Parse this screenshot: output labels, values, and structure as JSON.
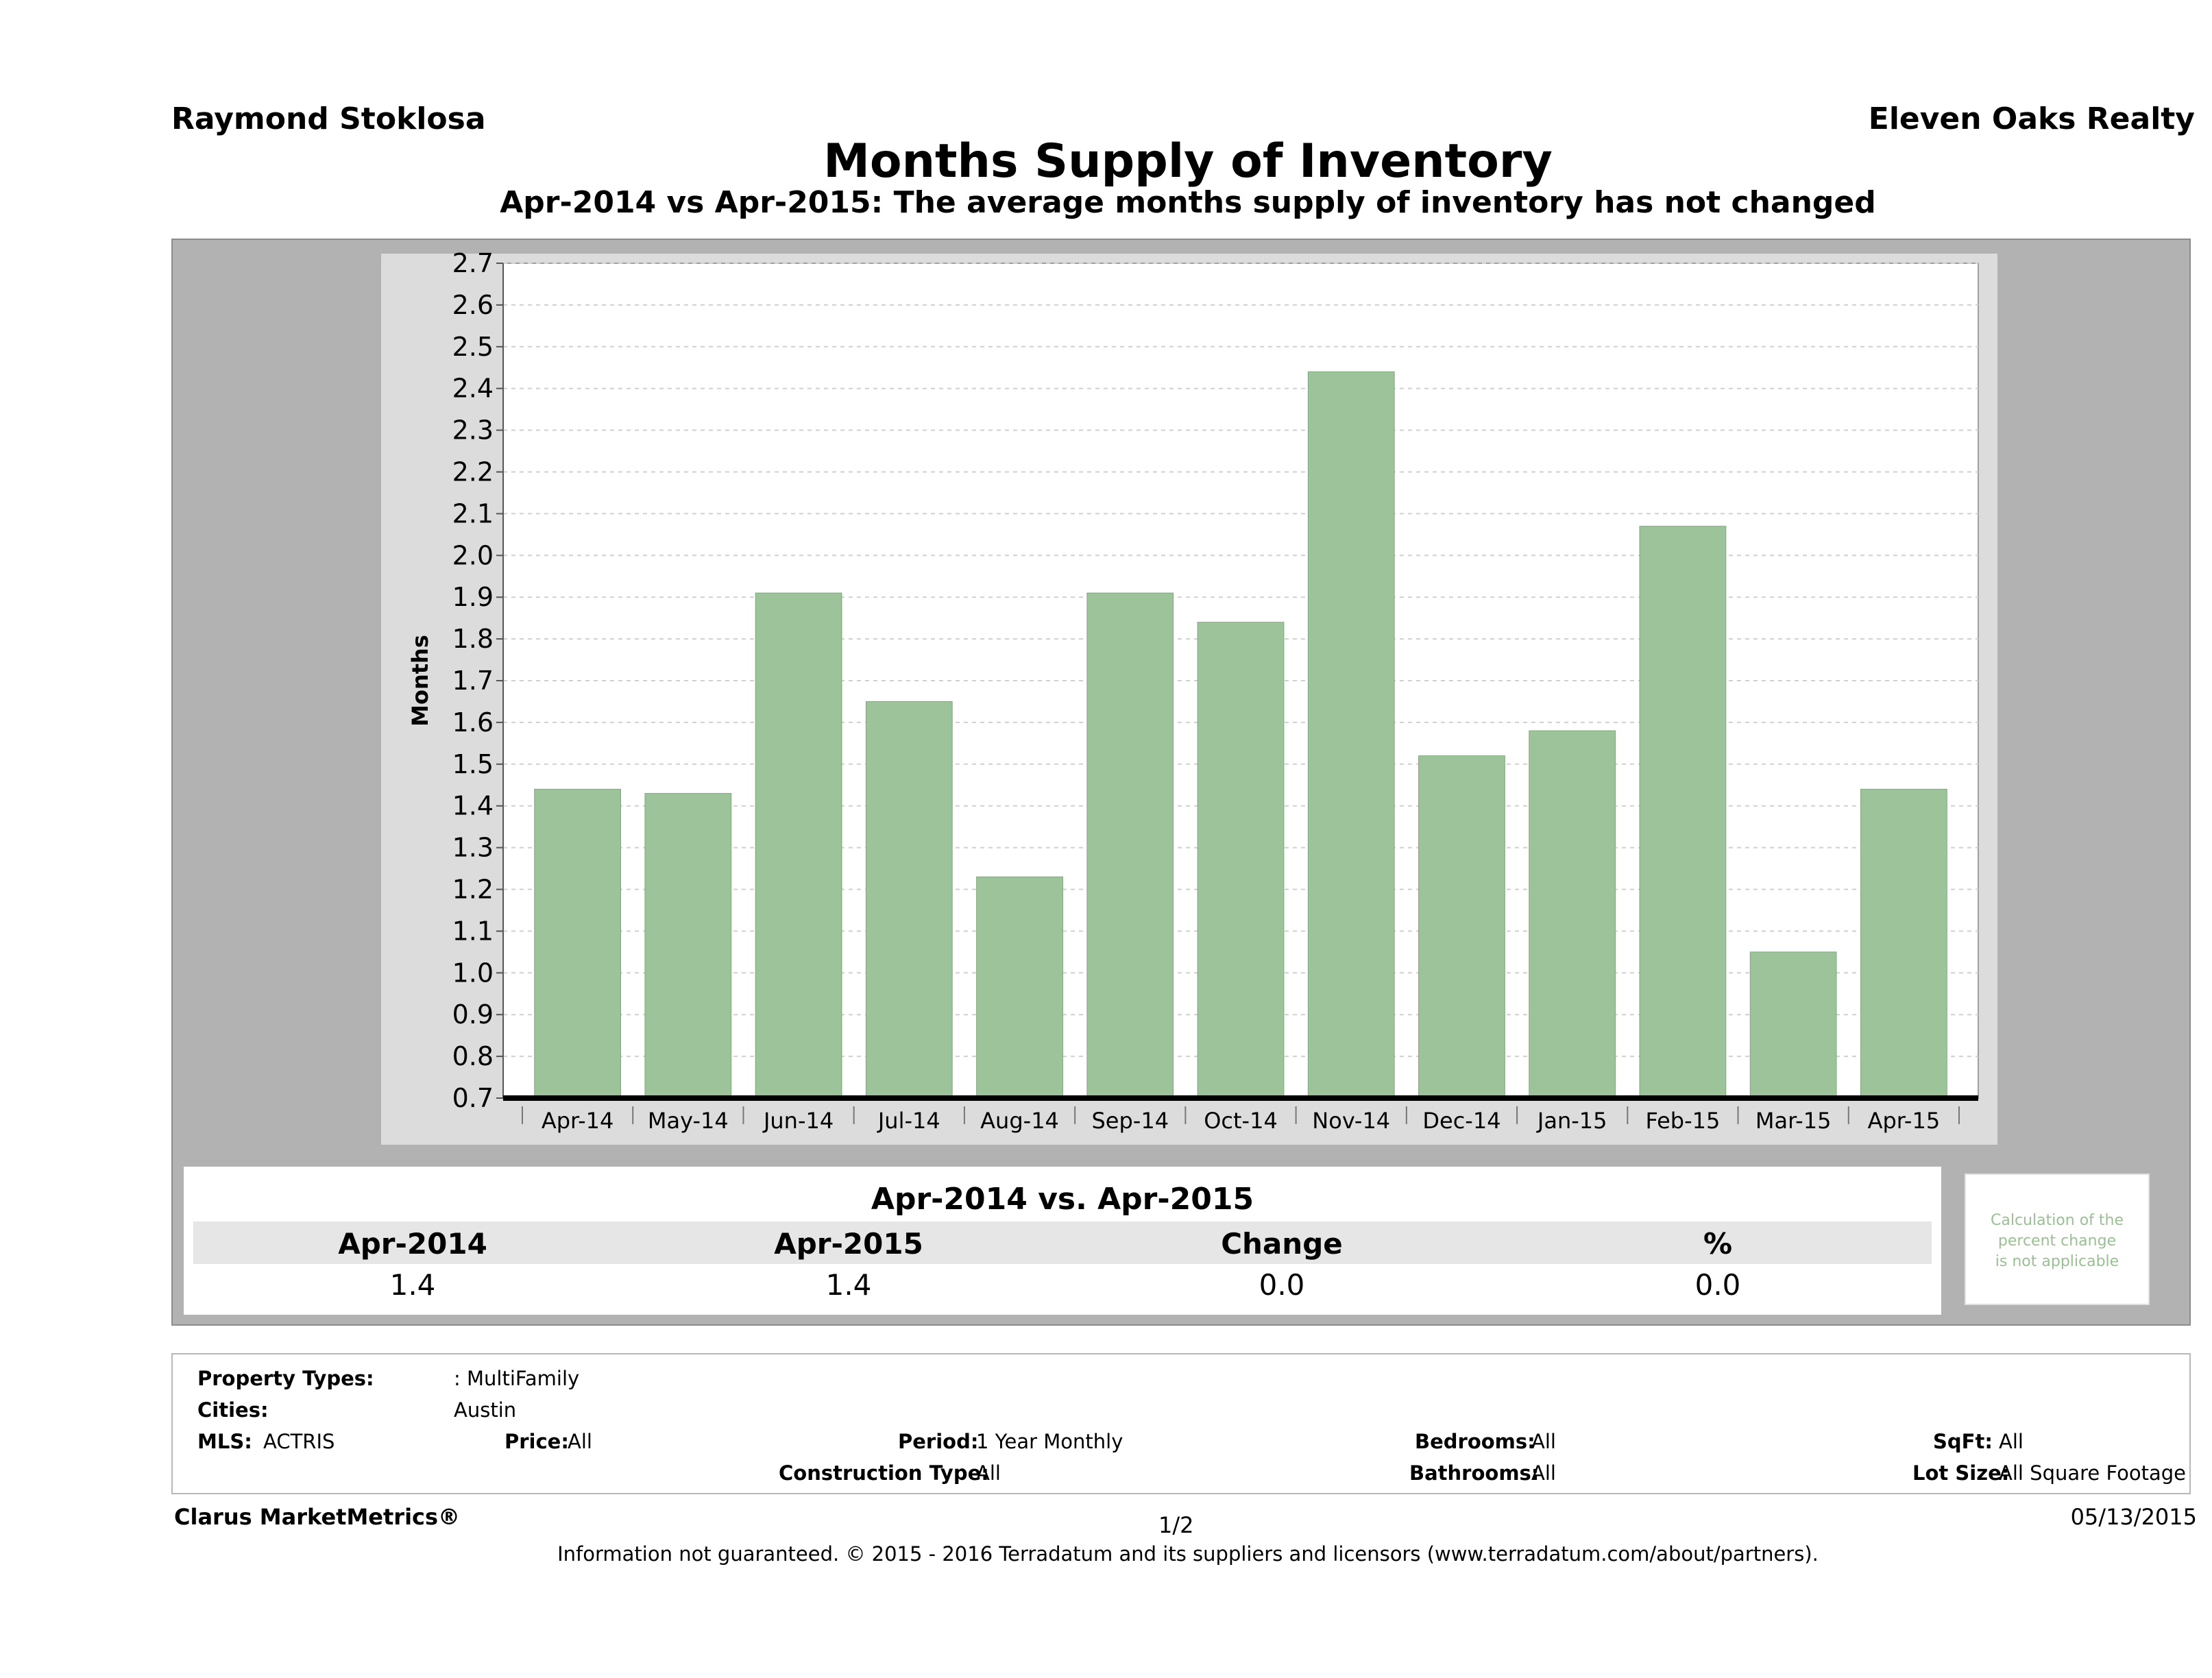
{
  "header": {
    "agent": "Raymond Stoklosa",
    "company": "Eleven Oaks Realty",
    "title": "Months Supply of Inventory",
    "subtitle": "Apr-2014 vs Apr-2015: The average months supply of inventory has not changed"
  },
  "chart_data": {
    "type": "bar",
    "categories": [
      "Apr-14",
      "May-14",
      "Jun-14",
      "Jul-14",
      "Aug-14",
      "Sep-14",
      "Oct-14",
      "Nov-14",
      "Dec-14",
      "Jan-15",
      "Feb-15",
      "Mar-15",
      "Apr-15"
    ],
    "values": [
      1.44,
      1.43,
      1.91,
      1.65,
      1.23,
      1.91,
      1.84,
      2.44,
      1.52,
      1.58,
      2.07,
      1.05,
      1.44
    ],
    "ylabel": "Months",
    "ylim": [
      0.7,
      2.7
    ],
    "yticks": [
      "0.7",
      "0.8",
      "0.9",
      "1.0",
      "1.1",
      "1.2",
      "1.3",
      "1.4",
      "1.5",
      "1.6",
      "1.7",
      "1.8",
      "1.9",
      "2.0",
      "2.1",
      "2.2",
      "2.3",
      "2.4",
      "2.5",
      "2.6",
      "2.7"
    ],
    "grid": true,
    "bar_color": "#9dc39a"
  },
  "comparison": {
    "title": "Apr-2014 vs. Apr-2015",
    "headers": [
      "Apr-2014",
      "Apr-2015",
      "Change",
      "%"
    ],
    "values": [
      "1.4",
      "1.4",
      "0.0",
      "0.0"
    ],
    "note": [
      "Calculation of the",
      "percent change",
      "is not applicable"
    ]
  },
  "filters": {
    "property_types_label": "Property Types:",
    "property_types_value": ": MultiFamily",
    "cities_label": "Cities:",
    "cities_value": "Austin",
    "mls_label": "MLS:",
    "mls_value": "ACTRIS",
    "price_label": "Price:",
    "price_value": "All",
    "period_label": "Period:",
    "period_value": "1 Year Monthly",
    "construction_label": "Construction Type:",
    "construction_value": "All",
    "bedrooms_label": "Bedrooms:",
    "bedrooms_value": "All",
    "bathrooms_label": "Bathrooms:",
    "bathrooms_value": "All",
    "sqft_label": "SqFt:",
    "sqft_value": "All",
    "lotsize_label": "Lot Size:",
    "lotsize_value": "All Square Footage"
  },
  "footer": {
    "brand": "Clarus MarketMetrics®",
    "page": "1/2",
    "date": "05/13/2015",
    "disclaimer": "Information not guaranteed. © 2015 - 2016 Terradatum and its suppliers and licensors (www.terradatum.com/about/partners)."
  }
}
